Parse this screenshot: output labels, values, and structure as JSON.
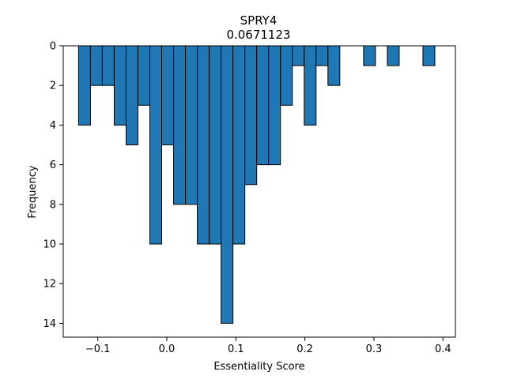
{
  "chart_data": {
    "type": "bar",
    "title": "SPRY4",
    "subtitle": "0.0671123",
    "xlabel": "Essentiality Score",
    "ylabel": "Frequency",
    "xlim": [
      -0.15,
      0.418
    ],
    "ylim": [
      0,
      14.7
    ],
    "y_inverted": true,
    "bin_width": 0.0172,
    "bar_color": "#1f77b4",
    "edge_color": "#000000",
    "x_ticks": [
      -0.1,
      0.0,
      0.1,
      0.2,
      0.3,
      0.4
    ],
    "x_tick_labels": [
      "−0.1",
      "0.0",
      "0.1",
      "0.2",
      "0.3",
      "0.4"
    ],
    "y_ticks": [
      0,
      2,
      4,
      6,
      8,
      10,
      12,
      14
    ],
    "y_tick_labels": [
      "0",
      "2",
      "4",
      "6",
      "8",
      "10",
      "12",
      "14"
    ],
    "bins": [
      {
        "x": -0.1278,
        "count": 4
      },
      {
        "x": -0.1106,
        "count": 2
      },
      {
        "x": -0.0934,
        "count": 2
      },
      {
        "x": -0.0762,
        "count": 4
      },
      {
        "x": -0.059,
        "count": 5
      },
      {
        "x": -0.0418,
        "count": 3
      },
      {
        "x": -0.0246,
        "count": 10
      },
      {
        "x": -0.0074,
        "count": 5
      },
      {
        "x": 0.0098,
        "count": 8
      },
      {
        "x": 0.027,
        "count": 8
      },
      {
        "x": 0.0442,
        "count": 10
      },
      {
        "x": 0.0614,
        "count": 10
      },
      {
        "x": 0.0786,
        "count": 14
      },
      {
        "x": 0.0958,
        "count": 10
      },
      {
        "x": 0.113,
        "count": 7
      },
      {
        "x": 0.1302,
        "count": 6
      },
      {
        "x": 0.1474,
        "count": 6
      },
      {
        "x": 0.1646,
        "count": 3
      },
      {
        "x": 0.1818,
        "count": 1
      },
      {
        "x": 0.199,
        "count": 4
      },
      {
        "x": 0.2162,
        "count": 1
      },
      {
        "x": 0.2334,
        "count": 2
      },
      {
        "x": 0.2506,
        "count": 0
      },
      {
        "x": 0.2678,
        "count": 0
      },
      {
        "x": 0.285,
        "count": 1
      },
      {
        "x": 0.3022,
        "count": 0
      },
      {
        "x": 0.3194,
        "count": 1
      },
      {
        "x": 0.3366,
        "count": 0
      },
      {
        "x": 0.3538,
        "count": 0
      },
      {
        "x": 0.371,
        "count": 1
      }
    ]
  }
}
